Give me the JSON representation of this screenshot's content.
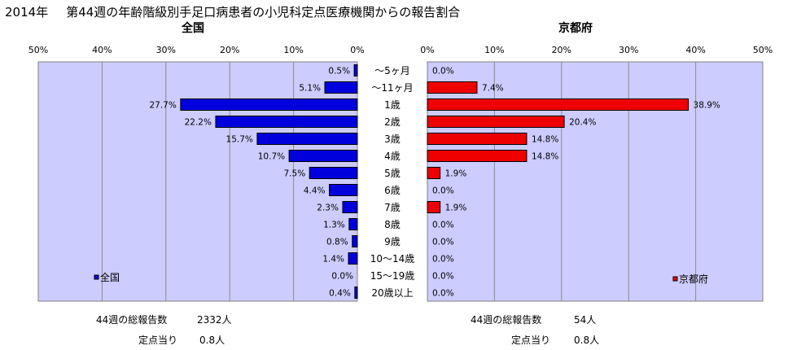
{
  "title": {
    "year": "2014年",
    "text": "第44週の年齢階級別手足口病患者の小児科定点医療機関からの報告割合"
  },
  "colors": {
    "panel_bg": "#ccccff",
    "national_bar": "#0000dd",
    "kyoto_bar": "#ee0000",
    "bar_border": "#000000"
  },
  "chart_data": [
    {
      "type": "bar",
      "orientation": "horizontal",
      "direction": "right-to-left",
      "title": "全国",
      "legend": "全国",
      "legend_position": "bottom-left",
      "xlim": [
        0,
        50
      ],
      "x_ticks": [
        "50%",
        "40%",
        "30%",
        "20%",
        "10%",
        "0%"
      ],
      "grid": true,
      "categories": [
        "～5ヶ月",
        "～11ヶ月",
        "1歳",
        "2歳",
        "3歳",
        "4歳",
        "5歳",
        "6歳",
        "7歳",
        "8歳",
        "9歳",
        "10～14歳",
        "15～19歳",
        "20歳以上"
      ],
      "values": [
        0.5,
        5.1,
        27.7,
        22.2,
        15.7,
        10.7,
        7.5,
        4.4,
        2.3,
        1.3,
        0.8,
        1.4,
        0.0,
        0.4
      ],
      "labels": [
        "0.5%",
        "5.1%",
        "27.7%",
        "22.2%",
        "15.7%",
        "10.7%",
        "7.5%",
        "4.4%",
        "2.3%",
        "1.3%",
        "0.8%",
        "1.4%",
        "0.0%",
        "0.4%"
      ]
    },
    {
      "type": "bar",
      "orientation": "horizontal",
      "direction": "left-to-right",
      "title": "京都府",
      "legend": "京都府",
      "legend_position": "bottom-right",
      "xlim": [
        0,
        50
      ],
      "x_ticks": [
        "0%",
        "10%",
        "20%",
        "30%",
        "40%",
        "50%"
      ],
      "grid": true,
      "categories": [
        "～5ヶ月",
        "～11ヶ月",
        "1歳",
        "2歳",
        "3歳",
        "4歳",
        "5歳",
        "6歳",
        "7歳",
        "8歳",
        "9歳",
        "10～14歳",
        "15～19歳",
        "20歳以上"
      ],
      "values": [
        0.0,
        7.4,
        38.9,
        20.4,
        14.8,
        14.8,
        1.9,
        0.0,
        1.9,
        0.0,
        0.0,
        0.0,
        0.0,
        0.0
      ],
      "labels": [
        "0.0%",
        "7.4%",
        "38.9%",
        "20.4%",
        "14.8%",
        "14.8%",
        "1.9%",
        "0.0%",
        "1.9%",
        "0.0%",
        "0.0%",
        "0.0%",
        "0.0%",
        "0.0%"
      ]
    }
  ],
  "summary": {
    "national": {
      "total_label": "44週の総報告数",
      "total_value": "2332人",
      "per_label": "定点当り",
      "per_value": "0.8人"
    },
    "kyoto": {
      "total_label": "44週の総報告数",
      "total_value": "54人",
      "per_label": "定点当り",
      "per_value": "0.8人"
    }
  }
}
